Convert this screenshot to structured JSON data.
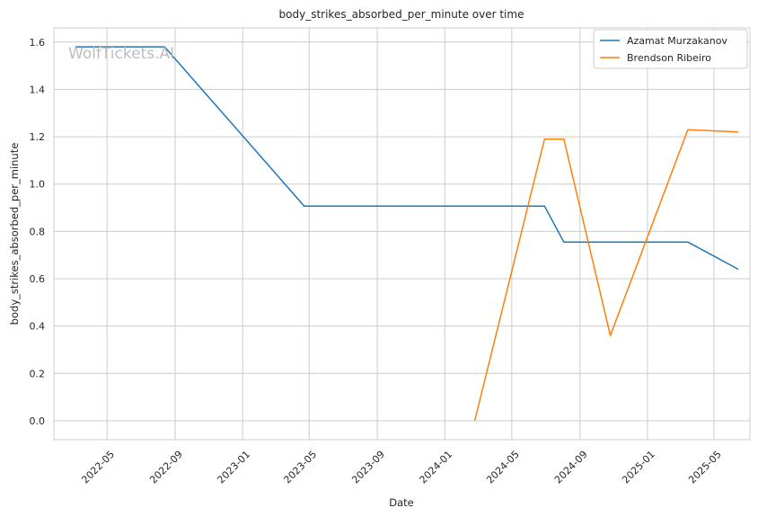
{
  "chart_data": {
    "type": "line",
    "title": "body_strikes_absorbed_per_minute over time",
    "xlabel": "Date",
    "ylabel": "body_strikes_absorbed_per_minute",
    "watermark": "WolfTickets.AI",
    "x_axis_type": "date",
    "xlim": [
      "2022-01-25",
      "2025-07-05"
    ],
    "ylim": [
      -0.08,
      1.66
    ],
    "x_ticks": [
      "2022-05-01",
      "2022-09-01",
      "2023-01-01",
      "2023-05-01",
      "2023-09-01",
      "2024-01-01",
      "2024-05-01",
      "2024-09-01",
      "2025-01-01",
      "2025-05-01"
    ],
    "x_tick_labels": [
      "2022-05",
      "2022-09",
      "2023-01",
      "2023-05",
      "2023-09",
      "2024-01",
      "2024-05",
      "2024-09",
      "2025-01",
      "2025-05"
    ],
    "y_ticks": [
      0.0,
      0.2,
      0.4,
      0.6,
      0.8,
      1.0,
      1.2,
      1.4,
      1.6
    ],
    "y_tick_labels": [
      "0.0",
      "0.2",
      "0.4",
      "0.6",
      "0.8",
      "1.0",
      "1.2",
      "1.4",
      "1.6"
    ],
    "grid": true,
    "legend_position": "top-right",
    "series": [
      {
        "name": "Azamat Murzakanov",
        "color": "#1f77b4",
        "points": [
          {
            "x": "2022-03-05",
            "y": 1.58
          },
          {
            "x": "2022-08-13",
            "y": 1.58
          },
          {
            "x": "2023-04-22",
            "y": 0.907
          },
          {
            "x": "2024-06-29",
            "y": 0.907
          },
          {
            "x": "2024-08-03",
            "y": 0.755
          },
          {
            "x": "2025-03-15",
            "y": 0.755
          },
          {
            "x": "2025-06-14",
            "y": 0.64
          }
        ]
      },
      {
        "name": "Brendson Ribeiro",
        "color": "#ff7f0e",
        "points": [
          {
            "x": "2024-02-24",
            "y": 0.0
          },
          {
            "x": "2024-06-29",
            "y": 1.19
          },
          {
            "x": "2024-08-03",
            "y": 1.19
          },
          {
            "x": "2024-10-26",
            "y": 0.36
          },
          {
            "x": "2025-03-15",
            "y": 1.23
          },
          {
            "x": "2025-06-14",
            "y": 1.22
          }
        ]
      }
    ]
  }
}
